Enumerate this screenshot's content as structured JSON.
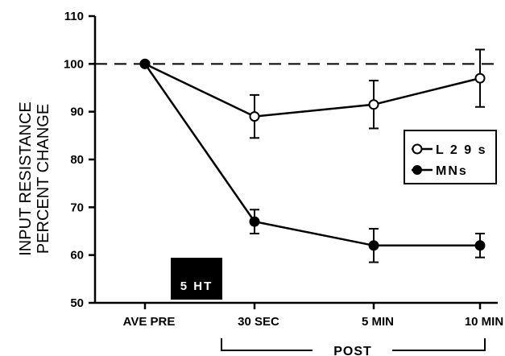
{
  "chart_data": {
    "type": "line",
    "categories": [
      "AVE PRE",
      "30  SEC",
      "5  MIN",
      "10  MIN"
    ],
    "ylabel_lines": [
      "INPUT  RESISTANCE",
      "PERCENT CHANGE"
    ],
    "ylim": [
      50,
      110
    ],
    "yticks": [
      50,
      60,
      70,
      80,
      90,
      100,
      110
    ],
    "reference_line": 100,
    "series": [
      {
        "name": "L29s",
        "marker": "open-circle",
        "values": [
          100,
          89,
          91.5,
          97
        ],
        "errors": [
          0,
          4.5,
          5,
          6
        ]
      },
      {
        "name": "MNs",
        "marker": "filled-circle",
        "values": [
          100,
          67,
          62,
          62
        ],
        "errors": [
          0,
          2.5,
          3.5,
          2.5
        ]
      }
    ],
    "legend": {
      "position": "right",
      "labels": [
        "L 2 9 s",
        "MNs"
      ]
    },
    "stimulus_label": "5 HT",
    "post_bracket_label": "POST",
    "grid": false
  }
}
